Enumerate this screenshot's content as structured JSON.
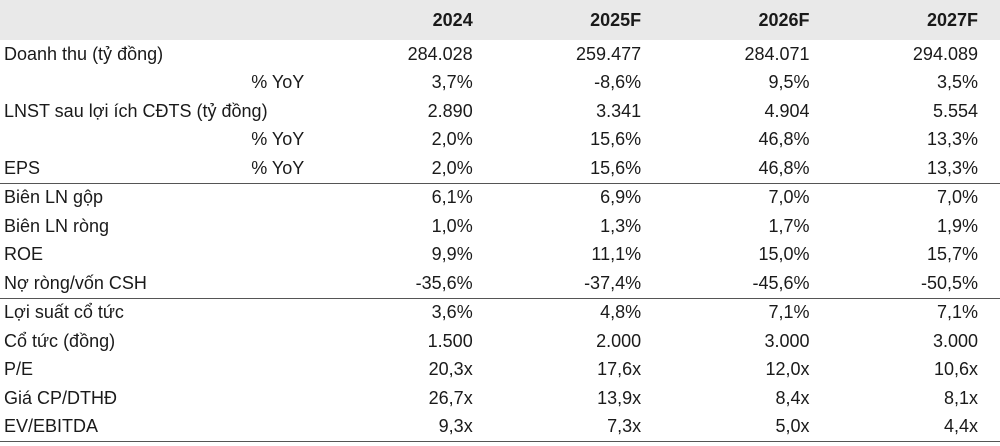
{
  "header": {
    "years": [
      "2024",
      "2025F",
      "2026F",
      "2027F"
    ]
  },
  "rows": [
    {
      "label": "Doanh thu (tỷ đồng)",
      "sub": "",
      "values": [
        "284.028",
        "259.477",
        "284.071",
        "294.089"
      ]
    },
    {
      "label": "",
      "sub": "% YoY",
      "values": [
        "3,7%",
        "-8,6%",
        "9,5%",
        "3,5%"
      ]
    },
    {
      "label": "LNST sau lợi ích CĐTS (tỷ đồng)",
      "sub": "",
      "values": [
        "2.890",
        "3.341",
        "4.904",
        "5.554"
      ]
    },
    {
      "label": "",
      "sub": "% YoY",
      "values": [
        "2,0%",
        "15,6%",
        "46,8%",
        "13,3%"
      ]
    },
    {
      "label": "EPS",
      "sub": "% YoY",
      "values": [
        "2,0%",
        "15,6%",
        "46,8%",
        "13,3%"
      ]
    },
    {
      "label": "Biên LN gộp",
      "sub": "",
      "values": [
        "6,1%",
        "6,9%",
        "7,0%",
        "7,0%"
      ]
    },
    {
      "label": "Biên LN ròng",
      "sub": "",
      "values": [
        "1,0%",
        "1,3%",
        "1,7%",
        "1,9%"
      ]
    },
    {
      "label": "ROE",
      "sub": "",
      "values": [
        "9,9%",
        "11,1%",
        "15,0%",
        "15,7%"
      ]
    },
    {
      "label": "Nợ ròng/vốn CSH",
      "sub": "",
      "values": [
        "-35,6%",
        "-37,4%",
        "-45,6%",
        "-50,5%"
      ]
    },
    {
      "label": "Lợi suất cổ tức",
      "sub": "",
      "values": [
        "3,6%",
        "4,8%",
        "7,1%",
        "7,1%"
      ]
    },
    {
      "label": "Cổ tức (đồng)",
      "sub": "",
      "values": [
        "1.500",
        "2.000",
        "3.000",
        "3.000"
      ]
    },
    {
      "label": "P/E",
      "sub": "",
      "values": [
        "20,3x",
        "17,6x",
        "12,0x",
        "10,6x"
      ]
    },
    {
      "label": "Giá CP/DTHĐ",
      "sub": "",
      "values": [
        "26,7x",
        "13,9x",
        "8,4x",
        "8,1x"
      ]
    },
    {
      "label": "EV/EBITDA",
      "sub": "",
      "values": [
        "9,3x",
        "7,3x",
        "5,0x",
        "4,4x"
      ]
    }
  ]
}
